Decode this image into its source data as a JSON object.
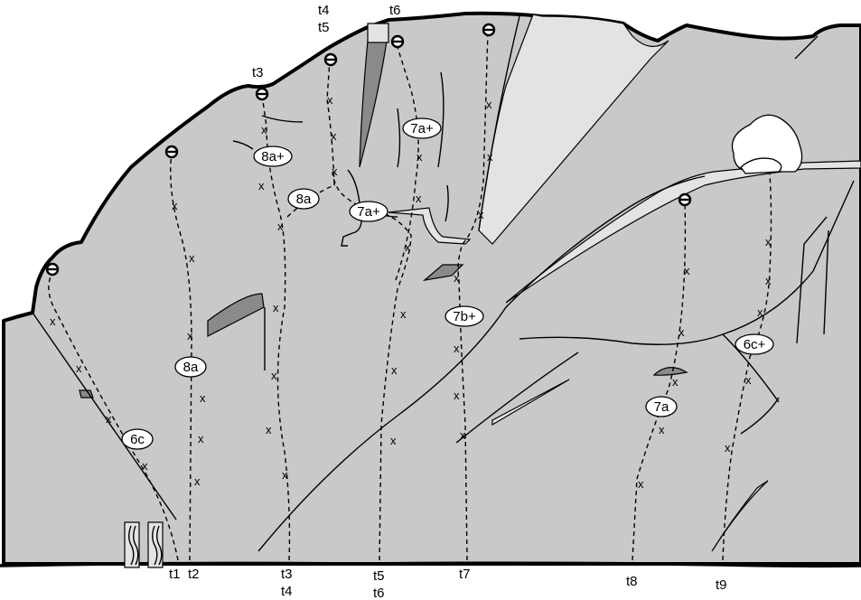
{
  "start_labels": {
    "t1": "t1",
    "t2": "t2",
    "t3": "t3",
    "t4": "t4",
    "t5": "t5",
    "t6": "t6",
    "t7": "t7",
    "t8": "t8",
    "t9": "t9"
  },
  "top_labels": {
    "t3": "t3",
    "t4": "t4",
    "t5": "t5",
    "t6": "t6"
  },
  "grades": {
    "r1": "6c",
    "r2": "8a",
    "r3a": "8a+",
    "r3b": "8a",
    "r5": "7a+",
    "r6": "7a+",
    "r7": "7b+",
    "r8": "7a",
    "r9": "6c+"
  },
  "bolt_mark": "x"
}
